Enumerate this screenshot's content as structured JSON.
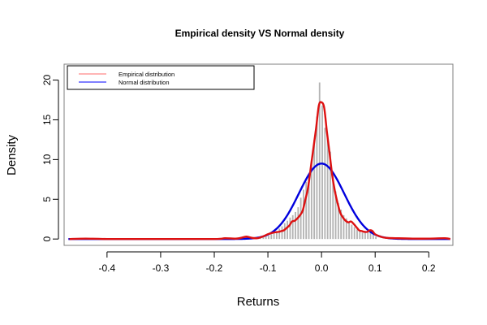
{
  "chart_data": {
    "type": "histogram+line",
    "title": "Empirical density VS Normal density",
    "xlabel": "Returns",
    "ylabel": "Density",
    "xlim": [
      -0.48,
      0.245
    ],
    "ylim": [
      -0.8,
      22.0
    ],
    "x_ticks": [
      -0.4,
      -0.3,
      -0.2,
      -0.1,
      0.0,
      0.1,
      0.2
    ],
    "x_tick_labels": [
      "-0.4",
      "-0.3",
      "-0.2",
      "-0.1",
      "0.0",
      "0.1",
      "0.2"
    ],
    "y_ticks": [
      0,
      5,
      10,
      15,
      20
    ],
    "y_tick_labels": [
      "0",
      "5",
      "10",
      "15",
      "20"
    ],
    "legend": {
      "position": "top-left",
      "entries": [
        {
          "label": "Empirical distribution",
          "color": "#ff6b6b"
        },
        {
          "label": "Normal distribution",
          "color": "#0000ff"
        }
      ]
    },
    "histogram": {
      "color": "#b3b3b3",
      "bin_width": 0.005,
      "bin_centers": [
        -0.1125,
        -0.1075,
        -0.1025,
        -0.0975,
        -0.0925,
        -0.0875,
        -0.0825,
        -0.0775,
        -0.0725,
        -0.0675,
        -0.0625,
        -0.0575,
        -0.0525,
        -0.0475,
        -0.0425,
        -0.0375,
        -0.0325,
        -0.0275,
        -0.0225,
        -0.0175,
        -0.0125,
        -0.0075,
        -0.0025,
        0.0025,
        0.0075,
        0.0125,
        0.0175,
        0.0225,
        0.0275,
        0.0325,
        0.0375,
        0.0425,
        0.0475,
        0.0525,
        0.0575,
        0.0625,
        0.0675,
        0.0725,
        0.0775,
        0.0825,
        0.0875,
        0.0925,
        0.0975,
        0.1025
      ],
      "heights": [
        0.1,
        0.2,
        0.3,
        0.4,
        0.6,
        0.8,
        1.0,
        1.3,
        1.6,
        2.0,
        2.3,
        2.7,
        3.0,
        3.4,
        4.0,
        5.2,
        6.2,
        7.2,
        8.2,
        10.0,
        12.5,
        15.4,
        19.7,
        16.8,
        14.0,
        13.0,
        11.0,
        8.0,
        6.0,
        4.5,
        3.7,
        3.0,
        2.6,
        2.2,
        1.8,
        1.5,
        1.2,
        1.0,
        0.8,
        0.8,
        1.0,
        1.1,
        0.6,
        0.3
      ]
    },
    "series": [
      {
        "name": "Empirical distribution",
        "color": "#dd1111",
        "x": [
          -0.47,
          -0.44,
          -0.4,
          -0.3,
          -0.2,
          -0.18,
          -0.16,
          -0.15,
          -0.14,
          -0.13,
          -0.12,
          -0.11,
          -0.1,
          -0.09,
          -0.08,
          -0.075,
          -0.07,
          -0.065,
          -0.06,
          -0.055,
          -0.05,
          -0.045,
          -0.04,
          -0.035,
          -0.03,
          -0.025,
          -0.02,
          -0.015,
          -0.01,
          -0.005,
          0.0,
          0.005,
          0.01,
          0.015,
          0.02,
          0.025,
          0.03,
          0.035,
          0.04,
          0.045,
          0.05,
          0.055,
          0.06,
          0.065,
          0.07,
          0.075,
          0.08,
          0.085,
          0.09,
          0.095,
          0.1,
          0.11,
          0.12,
          0.14,
          0.17,
          0.2,
          0.23,
          0.24
        ],
        "y": [
          0.0,
          0.05,
          0.0,
          0.0,
          0.0,
          0.1,
          0.05,
          0.15,
          0.3,
          0.15,
          0.1,
          0.3,
          0.6,
          0.8,
          0.9,
          1.0,
          1.1,
          1.4,
          1.7,
          2.2,
          2.3,
          2.6,
          3.0,
          3.6,
          5.0,
          6.5,
          9.0,
          11.5,
          14.0,
          16.8,
          17.2,
          16.5,
          13.5,
          10.8,
          8.0,
          6.0,
          4.5,
          3.3,
          2.7,
          2.3,
          2.1,
          2.2,
          1.9,
          1.5,
          1.1,
          1.0,
          0.9,
          0.9,
          1.1,
          1.0,
          0.6,
          0.3,
          0.15,
          0.1,
          0.05,
          0.05,
          0.1,
          0.0
        ]
      },
      {
        "name": "Normal distribution",
        "color": "#0000dd",
        "mean": 0.0,
        "sd": 0.042
      }
    ]
  }
}
